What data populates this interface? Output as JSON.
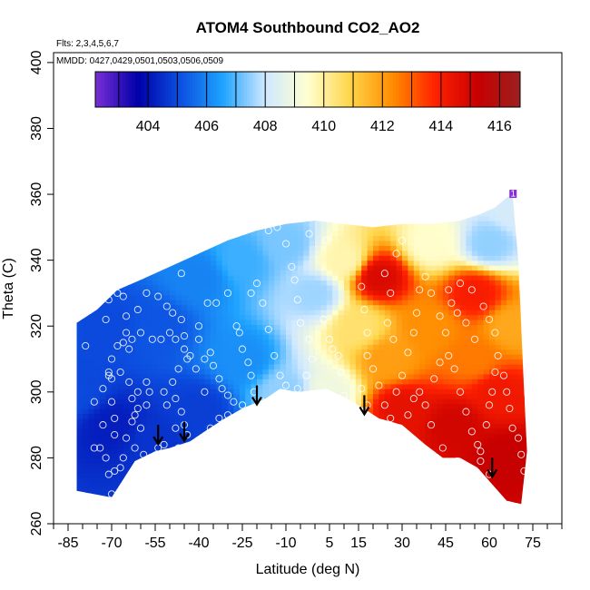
{
  "chart_data": {
    "type": "heatmap",
    "title": "ATOM4 Southbound CO2_AO2",
    "xlabel": "Latitude (deg N)",
    "ylabel": "Theta (C)",
    "annotations": {
      "flights": "Flts: 2,3,4,5,6,7",
      "dates": "MMDD: 0427,0429,0501,0503,0506,0509",
      "marker": "1"
    },
    "xlim": [
      -90,
      85
    ],
    "ylim": [
      260,
      403
    ],
    "x_ticks": [
      -85,
      -70,
      -55,
      -40,
      -25,
      -10,
      5,
      15,
      30,
      45,
      60,
      75
    ],
    "x_minor_step": 5,
    "y_ticks": [
      260,
      280,
      300,
      320,
      340,
      360,
      380,
      400
    ],
    "colorbar": {
      "ticks": [
        404,
        406,
        408,
        410,
        412,
        414,
        416
      ],
      "range": [
        402.2,
        416.7
      ],
      "colors": [
        "#7b2fd6",
        "#0000a8",
        "#0c4fe0",
        "#1ea3ff",
        "#cfe8ff",
        "#ffffd0",
        "#ffd54a",
        "#ff8c00",
        "#ff2200",
        "#c80000",
        "#9b2020"
      ]
    },
    "domain_bottom": [
      [
        -82,
        270
      ],
      [
        -70,
        268
      ],
      [
        -62,
        279
      ],
      [
        -55,
        282
      ],
      [
        -50,
        283
      ],
      [
        -43,
        285
      ],
      [
        -38,
        288
      ],
      [
        -31,
        292
      ],
      [
        -25,
        295
      ],
      [
        -17,
        298
      ],
      [
        -12,
        301
      ],
      [
        -6,
        300
      ],
      [
        4,
        301
      ],
      [
        11,
        298
      ],
      [
        15,
        296
      ],
      [
        22,
        292
      ],
      [
        30,
        290
      ],
      [
        38,
        284
      ],
      [
        44,
        280
      ],
      [
        50,
        280
      ],
      [
        56,
        277
      ],
      [
        61,
        272
      ],
      [
        66,
        267
      ],
      [
        71,
        266
      ]
    ],
    "domain_top": [
      [
        -82,
        321
      ],
      [
        -75,
        325
      ],
      [
        -68,
        331
      ],
      [
        -60,
        334
      ],
      [
        -50,
        338
      ],
      [
        -40,
        342
      ],
      [
        -30,
        346
      ],
      [
        -20,
        349
      ],
      [
        -10,
        351
      ],
      [
        0,
        352
      ],
      [
        10,
        351
      ],
      [
        20,
        350
      ],
      [
        30,
        351
      ],
      [
        40,
        351
      ],
      [
        50,
        352
      ],
      [
        57,
        354
      ],
      [
        62,
        356
      ],
      [
        66,
        359
      ],
      [
        68,
        360
      ],
      [
        70,
        340
      ],
      [
        72,
        300
      ],
      [
        73,
        282
      ]
    ],
    "field_control_points": [
      {
        "x": -82,
        "y": 300,
        "v": 405.0
      },
      {
        "x": -70,
        "y": 290,
        "v": 404.2
      },
      {
        "x": -70,
        "y": 320,
        "v": 405.0
      },
      {
        "x": -55,
        "y": 285,
        "v": 404.6
      },
      {
        "x": -55,
        "y": 320,
        "v": 405.2
      },
      {
        "x": -40,
        "y": 295,
        "v": 404.8
      },
      {
        "x": -40,
        "y": 335,
        "v": 406.0
      },
      {
        "x": -25,
        "y": 310,
        "v": 406.2
      },
      {
        "x": -25,
        "y": 340,
        "v": 406.8
      },
      {
        "x": -10,
        "y": 300,
        "v": 407.5
      },
      {
        "x": -10,
        "y": 345,
        "v": 407.3
      },
      {
        "x": 0,
        "y": 330,
        "v": 407.6
      },
      {
        "x": 5,
        "y": 300,
        "v": 409.0
      },
      {
        "x": 10,
        "y": 340,
        "v": 409.8
      },
      {
        "x": 15,
        "y": 320,
        "v": 410.5
      },
      {
        "x": 22,
        "y": 335,
        "v": 414.8
      },
      {
        "x": 25,
        "y": 310,
        "v": 412.0
      },
      {
        "x": 30,
        "y": 295,
        "v": 414.5
      },
      {
        "x": 40,
        "y": 320,
        "v": 412.3
      },
      {
        "x": 40,
        "y": 345,
        "v": 409.5
      },
      {
        "x": 48,
        "y": 290,
        "v": 415.0
      },
      {
        "x": 55,
        "y": 310,
        "v": 412.6
      },
      {
        "x": 55,
        "y": 330,
        "v": 414.0
      },
      {
        "x": 60,
        "y": 345,
        "v": 407.5
      },
      {
        "x": 63,
        "y": 300,
        "v": 414.2
      },
      {
        "x": 66,
        "y": 280,
        "v": 415.3
      },
      {
        "x": 68,
        "y": 320,
        "v": 411.8
      },
      {
        "x": 70,
        "y": 355,
        "v": 408.2
      }
    ],
    "observation_points": [
      [
        -84,
        321
      ],
      [
        -79,
        314
      ],
      [
        -76,
        297
      ],
      [
        -73,
        290
      ],
      [
        -71,
        275
      ],
      [
        -70,
        269
      ],
      [
        -76,
        283
      ],
      [
        -73,
        301
      ],
      [
        -71,
        305
      ],
      [
        -70,
        304
      ],
      [
        -70,
        297
      ],
      [
        -69,
        292
      ],
      [
        -69,
        287
      ],
      [
        -72,
        322
      ],
      [
        -71,
        328
      ],
      [
        -70,
        331
      ],
      [
        -68,
        330
      ],
      [
        -66,
        329
      ],
      [
        -65,
        323
      ],
      [
        -65,
        318
      ],
      [
        -64,
        313
      ],
      [
        -63,
        316
      ],
      [
        -66,
        315
      ],
      [
        -68,
        314
      ],
      [
        -70,
        310
      ],
      [
        -71,
        306
      ],
      [
        -67,
        306
      ],
      [
        -64,
        303
      ],
      [
        -63,
        298
      ],
      [
        -61,
        295
      ],
      [
        -60,
        289
      ],
      [
        -58,
        296
      ],
      [
        -57,
        300
      ],
      [
        -58,
        303
      ],
      [
        -61,
        300
      ],
      [
        -62,
        293
      ],
      [
        -63,
        291
      ],
      [
        -65,
        286
      ],
      [
        -66,
        280
      ],
      [
        -67,
        277
      ],
      [
        -69,
        276
      ],
      [
        -72,
        280
      ],
      [
        -74,
        283
      ],
      [
        -62,
        283
      ],
      [
        -59,
        281
      ],
      [
        -54,
        283
      ],
      [
        -52,
        284
      ],
      [
        -50,
        279
      ],
      [
        -48,
        289
      ],
      [
        -47,
        283
      ],
      [
        -46,
        294
      ],
      [
        -48,
        298
      ],
      [
        -51,
        296
      ],
      [
        -52,
        300
      ],
      [
        -49,
        303
      ],
      [
        -47,
        307
      ],
      [
        -45,
        313
      ],
      [
        -44,
        310
      ],
      [
        -45,
        317
      ],
      [
        -46,
        322
      ],
      [
        -49,
        324
      ],
      [
        -51,
        326
      ],
      [
        -54,
        329
      ],
      [
        -58,
        330
      ],
      [
        -61,
        325
      ],
      [
        -60,
        318
      ],
      [
        -56,
        316
      ],
      [
        -53,
        316
      ],
      [
        -50,
        318
      ],
      [
        -48,
        316
      ],
      [
        -46,
        336
      ],
      [
        -40,
        320
      ],
      [
        -37,
        327
      ],
      [
        -34,
        327
      ],
      [
        -30,
        330
      ],
      [
        -27,
        320
      ],
      [
        -26,
        318
      ],
      [
        -25,
        313
      ],
      [
        -23,
        309
      ],
      [
        -22,
        305
      ],
      [
        -21,
        300
      ],
      [
        -18,
        297
      ],
      [
        -25,
        296
      ],
      [
        -28,
        289
      ],
      [
        -30,
        293
      ],
      [
        -33,
        292
      ],
      [
        -36,
        289
      ],
      [
        -39,
        285
      ],
      [
        -42,
        284
      ],
      [
        -44,
        287
      ],
      [
        -45,
        290
      ],
      [
        -36,
        312
      ],
      [
        -35,
        308
      ],
      [
        -33,
        304
      ],
      [
        -32,
        301
      ],
      [
        -30,
        299
      ],
      [
        -28,
        297
      ],
      [
        -38,
        310
      ],
      [
        -41,
        307
      ],
      [
        -43,
        311
      ],
      [
        -40,
        316
      ],
      [
        -38,
        300
      ],
      [
        -16,
        349
      ],
      [
        -13,
        350
      ],
      [
        -10,
        345
      ],
      [
        -8,
        338
      ],
      [
        -7,
        334
      ],
      [
        -6,
        328
      ],
      [
        -5,
        321
      ],
      [
        -2,
        316
      ],
      [
        -1,
        310
      ],
      [
        -3,
        305
      ],
      [
        -6,
        301
      ],
      [
        -10,
        302
      ],
      [
        -12,
        305
      ],
      [
        -14,
        311
      ],
      [
        -16,
        319
      ],
      [
        -18,
        327
      ],
      [
        -20,
        333
      ],
      [
        -22,
        330
      ],
      [
        3,
        322
      ],
      [
        5,
        316
      ],
      [
        6,
        313
      ],
      [
        8,
        311
      ],
      [
        9,
        306
      ],
      [
        4,
        346
      ],
      [
        -2,
        348
      ],
      [
        16,
        332
      ],
      [
        17,
        325
      ],
      [
        18,
        318
      ],
      [
        18,
        311
      ],
      [
        20,
        307
      ],
      [
        22,
        302
      ],
      [
        24,
        296
      ],
      [
        26,
        292
      ],
      [
        28,
        300
      ],
      [
        30,
        305
      ],
      [
        32,
        312
      ],
      [
        34,
        318
      ],
      [
        35,
        324
      ],
      [
        36,
        331
      ],
      [
        38,
        335
      ],
      [
        40,
        330
      ],
      [
        43,
        323
      ],
      [
        45,
        318
      ],
      [
        46,
        311
      ],
      [
        48,
        307
      ],
      [
        50,
        300
      ],
      [
        52,
        294
      ],
      [
        54,
        288
      ],
      [
        56,
        284
      ],
      [
        57,
        279
      ],
      [
        49,
        279
      ],
      [
        44,
        283
      ],
      [
        40,
        290
      ],
      [
        38,
        296
      ],
      [
        36,
        300
      ],
      [
        41,
        304
      ],
      [
        43,
        309
      ],
      [
        47,
        327
      ],
      [
        50,
        333
      ],
      [
        54,
        331
      ],
      [
        58,
        326
      ],
      [
        60,
        322
      ],
      [
        62,
        318
      ],
      [
        63,
        311
      ],
      [
        65,
        305
      ],
      [
        66,
        300
      ],
      [
        67,
        295
      ],
      [
        68,
        289
      ],
      [
        70,
        286
      ],
      [
        71,
        281
      ],
      [
        72,
        276
      ],
      [
        60,
        275
      ],
      [
        57,
        282
      ],
      [
        59,
        290
      ],
      [
        60,
        296
      ],
      [
        61,
        300
      ],
      [
        62,
        306
      ],
      [
        55,
        316
      ],
      [
        52,
        321
      ],
      [
        49,
        324
      ],
      [
        46,
        331
      ],
      [
        30,
        346
      ],
      [
        28,
        342
      ],
      [
        24,
        336
      ],
      [
        26,
        330
      ],
      [
        25,
        321
      ],
      [
        27,
        316
      ],
      [
        16,
        301
      ],
      [
        18,
        296
      ],
      [
        13,
        296
      ],
      [
        10,
        299
      ],
      [
        34,
        298
      ],
      [
        32,
        293
      ],
      [
        14,
        290
      ]
    ],
    "arrows": [
      [
        -54,
        290
      ],
      [
        -45,
        291
      ],
      [
        -20,
        302
      ],
      [
        17,
        299
      ],
      [
        61,
        280
      ]
    ]
  }
}
